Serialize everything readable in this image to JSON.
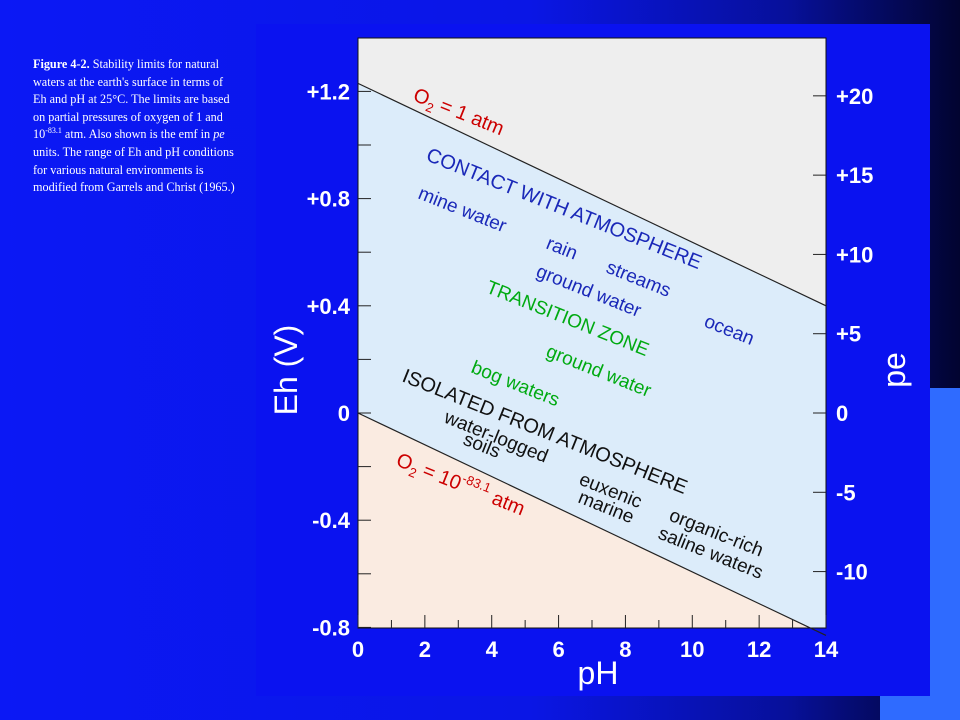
{
  "caption": {
    "fig_label": "Figure 4-2.",
    "text": "Stability limits for natural waters at the earth's surface in terms of Eh and pH at 25°C. The limits are based on partial pressures of oxygen of 1 and 10",
    "exp": "-83.1",
    "text2": " atm. Also shown is the emf in ",
    "pe": "pe",
    "text3": " units. The range of Eh and pH conditions for various natural environments is modified from Garrels and Christ (1965.)"
  },
  "colors": {
    "background": "#0a12f0",
    "plot_bg": "#eeeeee",
    "band": "#dcecfa",
    "lower_region": "#faebe1",
    "axis_text": "#ffffff",
    "label_red": "#cc0000",
    "label_blue": "#1a28b8",
    "label_green": "#00aa11",
    "label_black": "#111111"
  },
  "chart_data": {
    "type": "line",
    "xlabel": "pH",
    "ylabel": "Eh (V)",
    "y2label": "pe",
    "xlim": [
      0,
      14
    ],
    "ylim": [
      -0.8,
      1.3
    ],
    "xticks": [
      "0",
      "2",
      "4",
      "6",
      "8",
      "10",
      "12",
      "14"
    ],
    "yticks": [
      {
        "v": 1.2,
        "label": "+1.2"
      },
      {
        "v": 0.8,
        "label": "+0.8"
      },
      {
        "v": 0.4,
        "label": "+0.4"
      },
      {
        "v": 0.0,
        "label": "0"
      },
      {
        "v": -0.4,
        "label": "-0.4"
      },
      {
        "v": -0.8,
        "label": "-0.8"
      }
    ],
    "y2ticks": [
      {
        "v": 20,
        "label": "+20"
      },
      {
        "v": 15,
        "label": "+15"
      },
      {
        "v": 10,
        "label": "+10"
      },
      {
        "v": 5,
        "label": "+5"
      },
      {
        "v": 0,
        "label": "0"
      },
      {
        "v": -5,
        "label": "-5"
      },
      {
        "v": -10,
        "label": "-10"
      }
    ],
    "series": [
      {
        "name_main": "O",
        "name_sub": "2",
        "name_rest": " = 1 atm",
        "x": [
          0,
          14
        ],
        "y": [
          1.23,
          0.4
        ]
      },
      {
        "name_main": "O",
        "name_sub": "2",
        "name_rest": " = 10",
        "name_sup": "-83.1",
        "name_end": " atm",
        "x": [
          0,
          14
        ],
        "y": [
          0.0,
          -0.83
        ]
      }
    ],
    "annotations": {
      "contact": "CONTACT WITH ATMOSPHERE",
      "mine": "mine water",
      "rain": "rain",
      "streams": "streams",
      "groundwater1": "ground water",
      "ocean": "ocean",
      "transition": "TRANSITION ZONE",
      "groundwater2": "ground water",
      "bog": "bog waters",
      "isolated": "ISOLATED FROM ATMOSPHERE",
      "waterlogged": "water-logged",
      "soils": "soils",
      "euxenic": "euxenic",
      "organic": "organic-rich",
      "marine": "marine",
      "saline": "saline waters"
    }
  }
}
